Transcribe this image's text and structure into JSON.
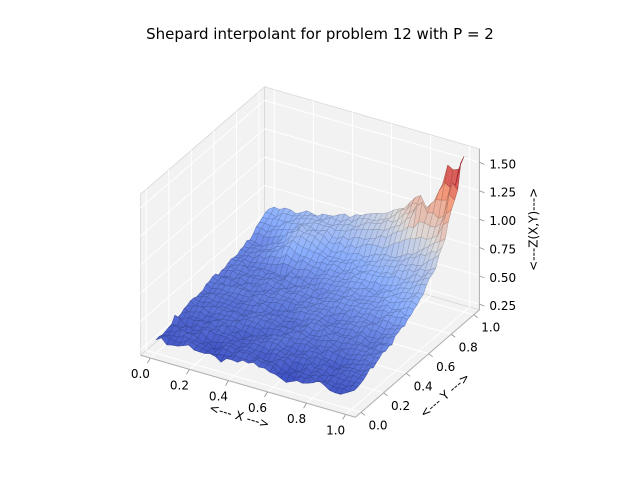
{
  "title": "Shepard interpolant for problem 12 with P = 2",
  "chart_data": {
    "type": "surface3d",
    "title": "Shepard interpolant for problem 12 with P = 2",
    "xlabel": "<--- X --->",
    "ylabel": "<--- Y --->",
    "zlabel": "<---Z(X,Y)--->",
    "view": {
      "elev": 30,
      "azim": -60
    },
    "xlim": [
      -0.05,
      1.05
    ],
    "ylim": [
      -0.05,
      1.05
    ],
    "zlim": [
      0.2,
      1.62
    ],
    "x_ticks": [
      0.0,
      0.2,
      0.4,
      0.6,
      0.8,
      1.0
    ],
    "x_tick_labels": [
      "0.0",
      "0.2",
      "0.4",
      "0.6",
      "0.8",
      "1.0"
    ],
    "y_ticks": [
      0.0,
      0.2,
      0.4,
      0.6,
      0.8,
      1.0
    ],
    "y_tick_labels": [
      "0.0",
      "0.2",
      "0.4",
      "0.6",
      "0.8",
      "1.0"
    ],
    "z_ticks": [
      0.25,
      0.5,
      0.75,
      1.0,
      1.25,
      1.5
    ],
    "z_tick_labels": [
      "0.25",
      "0.50",
      "0.75",
      "1.00",
      "1.25",
      "1.50"
    ],
    "colormap": "coolwarm",
    "colormap_stops": [
      [
        0,
        "#3b4cc0"
      ],
      [
        0.25,
        "#8cb0fe"
      ],
      [
        0.5,
        "#dddcdc"
      ],
      [
        0.75,
        "#f49a7b"
      ],
      [
        1,
        "#b40426"
      ]
    ],
    "grid": true,
    "surface": {
      "x": [
        0,
        0.083,
        0.167,
        0.25,
        0.333,
        0.417,
        0.5,
        0.583,
        0.667,
        0.75,
        0.833,
        0.917,
        1.0
      ],
      "y": [
        0,
        0.083,
        0.167,
        0.25,
        0.333,
        0.417,
        0.5,
        0.583,
        0.667,
        0.75,
        0.833,
        0.917,
        1.0
      ],
      "z": [
        [
          0.34,
          0.31,
          0.35,
          0.32,
          0.3,
          0.33,
          0.36,
          0.32,
          0.29,
          0.33,
          0.35,
          0.31,
          0.34
        ],
        [
          0.33,
          0.36,
          0.34,
          0.31,
          0.35,
          0.37,
          0.33,
          0.36,
          0.32,
          0.35,
          0.33,
          0.36,
          0.34
        ],
        [
          0.37,
          0.34,
          0.38,
          0.36,
          0.33,
          0.37,
          0.39,
          0.35,
          0.38,
          0.36,
          0.34,
          0.38,
          0.4
        ],
        [
          0.36,
          0.39,
          0.37,
          0.4,
          0.38,
          0.36,
          0.4,
          0.42,
          0.38,
          0.41,
          0.39,
          0.42,
          0.43
        ],
        [
          0.4,
          0.38,
          0.41,
          0.39,
          0.43,
          0.41,
          0.39,
          0.43,
          0.45,
          0.42,
          0.44,
          0.42,
          0.47
        ],
        [
          0.39,
          0.42,
          0.4,
          0.44,
          0.42,
          0.4,
          0.44,
          0.46,
          0.43,
          0.46,
          0.48,
          0.46,
          0.51
        ],
        [
          0.43,
          0.41,
          0.44,
          0.42,
          0.46,
          0.44,
          0.48,
          0.46,
          0.49,
          0.51,
          0.5,
          0.54,
          0.57
        ],
        [
          0.42,
          0.45,
          0.43,
          0.47,
          0.45,
          0.49,
          0.47,
          0.51,
          0.53,
          0.52,
          0.57,
          0.6,
          0.64
        ],
        [
          0.46,
          0.44,
          0.47,
          0.45,
          0.49,
          0.47,
          0.52,
          0.54,
          0.57,
          0.55,
          0.61,
          0.66,
          0.71
        ],
        [
          0.45,
          0.48,
          0.53,
          0.62,
          0.57,
          0.56,
          0.55,
          0.58,
          0.61,
          0.64,
          0.68,
          0.74,
          0.81
        ],
        [
          0.49,
          0.47,
          0.58,
          0.7,
          0.66,
          0.6,
          0.6,
          0.64,
          0.67,
          0.72,
          0.78,
          0.87,
          1.0
        ],
        [
          0.56,
          0.58,
          0.63,
          0.68,
          0.7,
          0.7,
          0.74,
          0.79,
          0.85,
          0.95,
          1.12,
          1.05,
          1.32
        ],
        [
          0.62,
          0.64,
          0.66,
          0.69,
          0.72,
          0.76,
          0.8,
          0.86,
          0.93,
          1.1,
          1.05,
          1.38,
          1.55
        ]
      ]
    },
    "colors": {
      "pane": "#f2f2f2",
      "grid": "#ffffff",
      "pane_edge": "#d8d8d8",
      "axis_edge": "#b0b0b0",
      "tick": "#8f8f8f",
      "text": "#000000",
      "background": "#ffffff"
    }
  }
}
